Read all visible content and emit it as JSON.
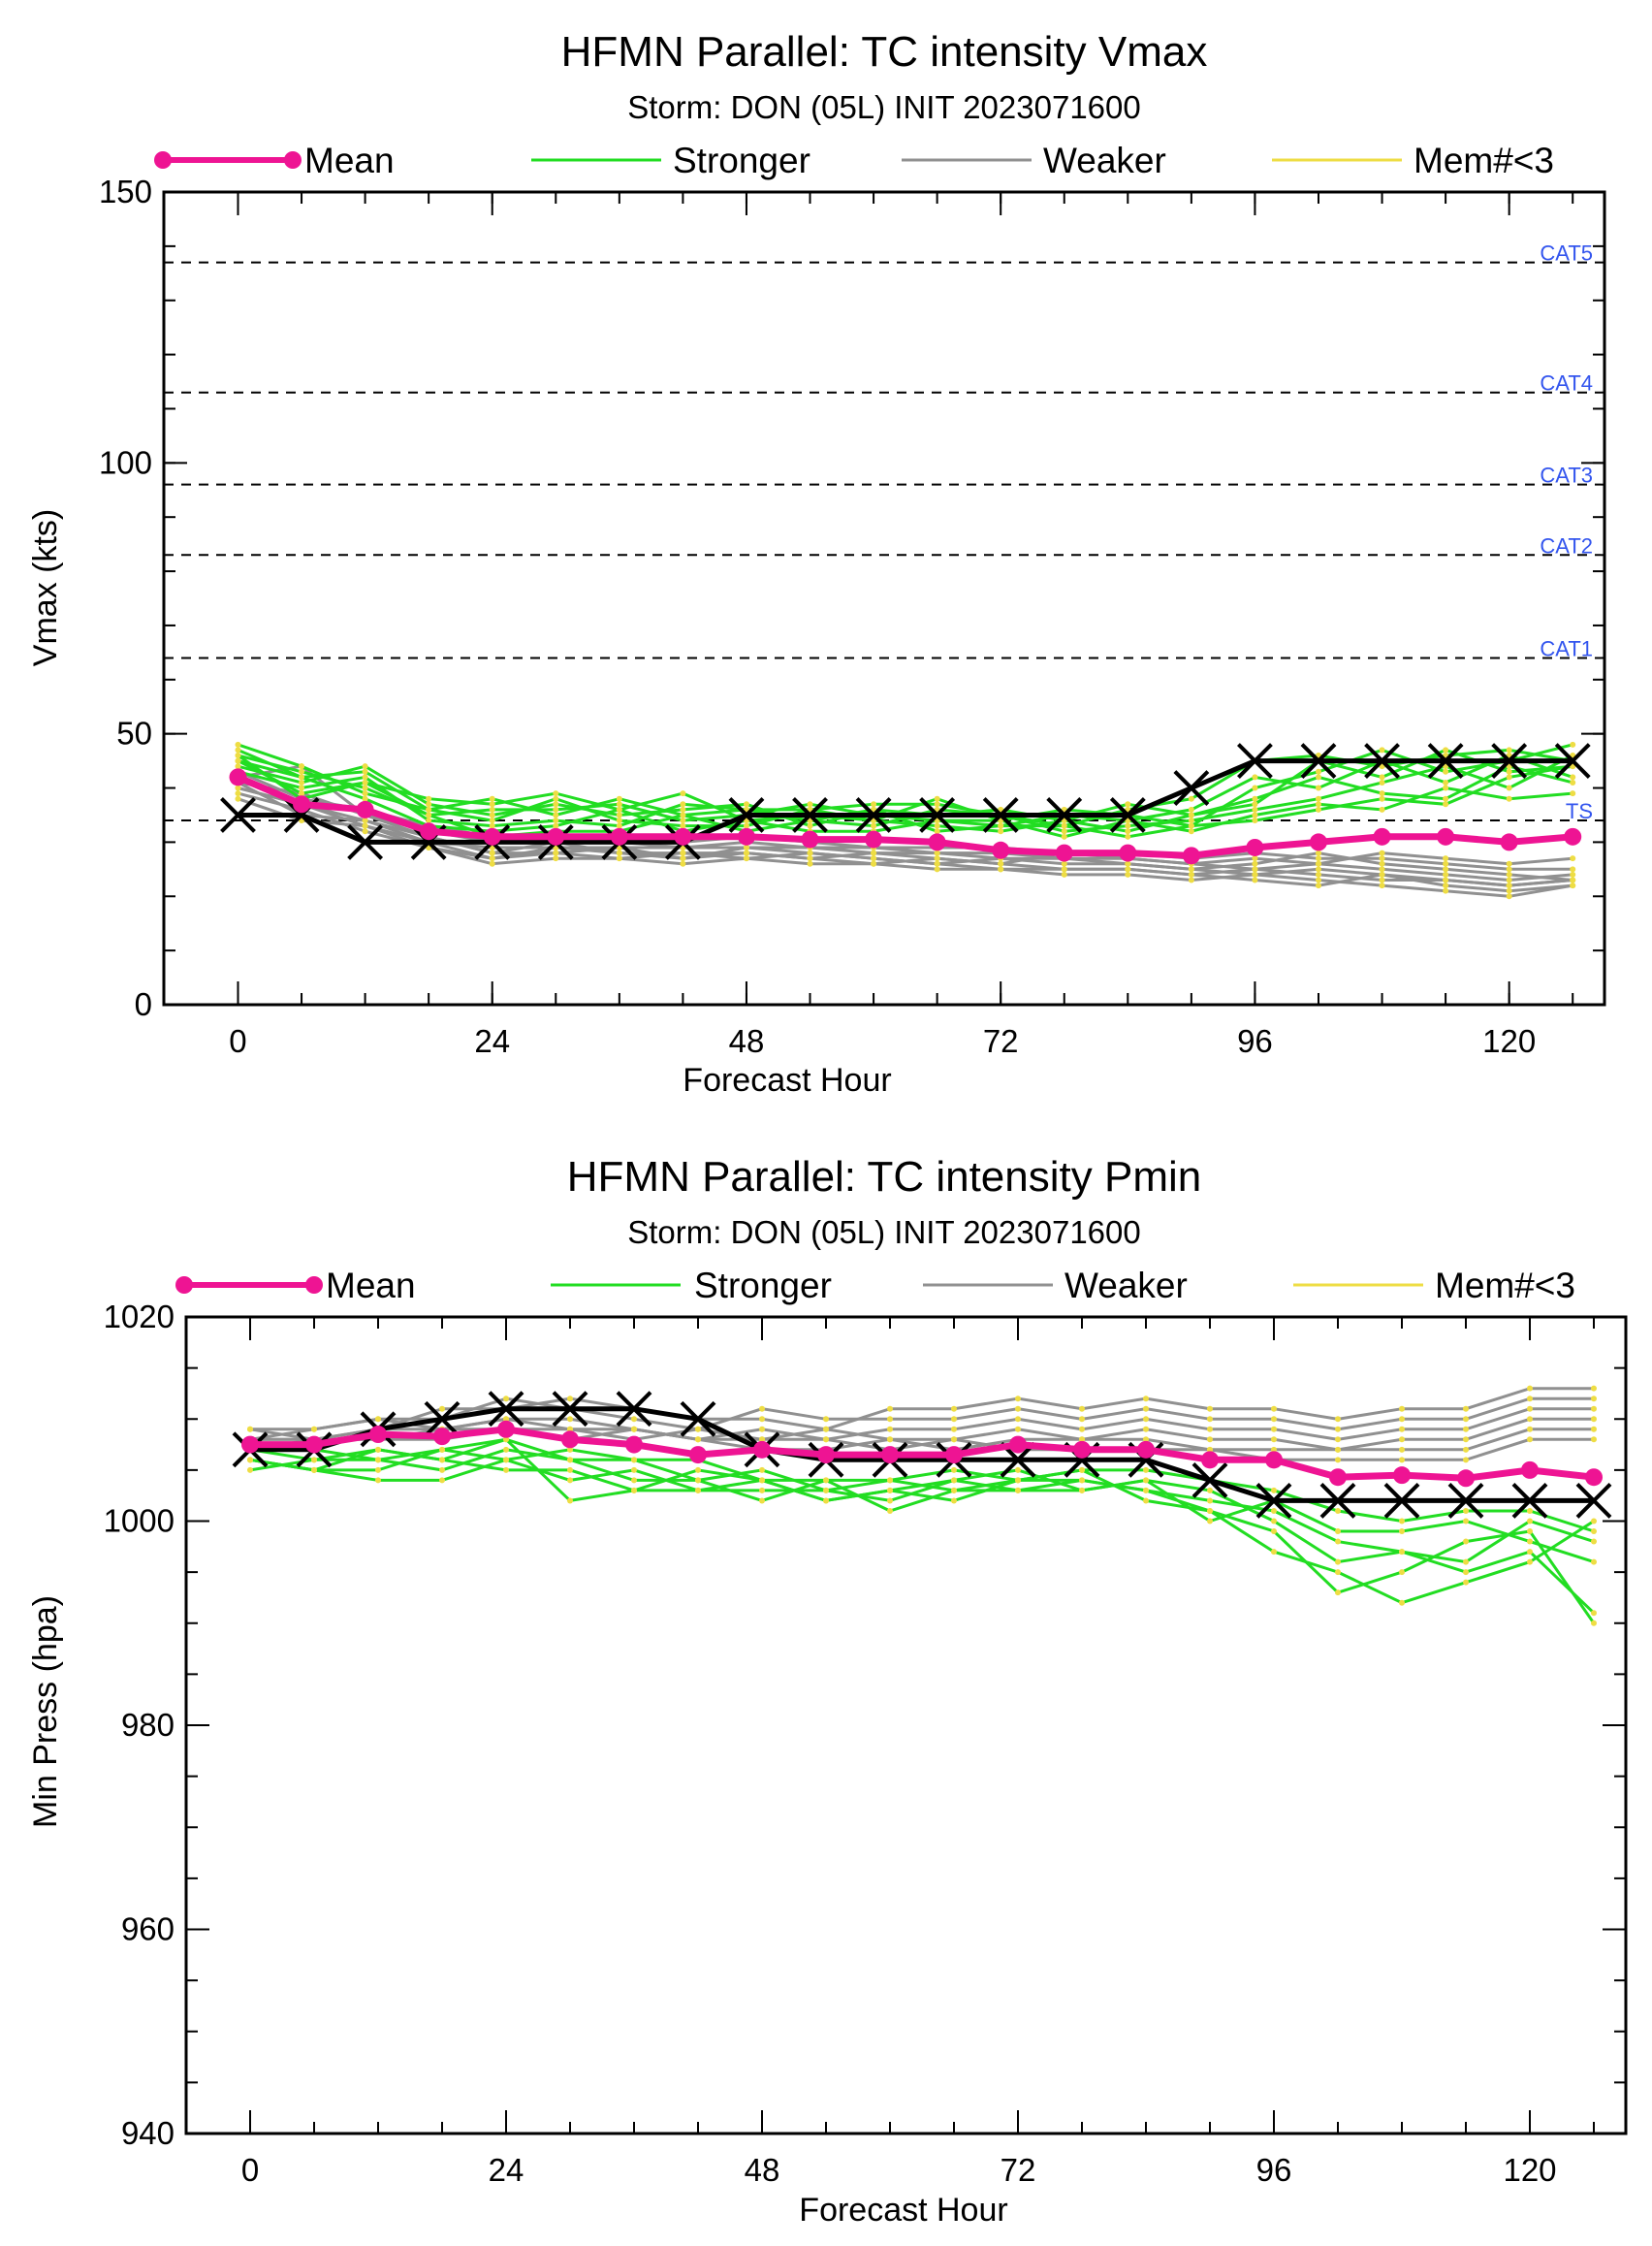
{
  "colors": {
    "mean": "#ee1493",
    "stronger": "#22dd22",
    "weaker": "#909090",
    "mem_lt3": "#eedd44",
    "observed": "#000000",
    "category_label": "#3355ee"
  },
  "chart_data": [
    {
      "type": "line",
      "title": "HFMN Parallel: TC intensity Vmax",
      "subtitle": "Storm: DON (05L) INIT 2023071600",
      "xlabel": "Forecast Hour",
      "ylabel": "Vmax (kts)",
      "xlim": [
        -7,
        129
      ],
      "ylim": [
        0,
        150
      ],
      "x_ticks": [
        0,
        24,
        48,
        72,
        96,
        120
      ],
      "y_ticks": [
        0,
        50,
        100,
        150
      ],
      "y_minor_step": 10,
      "x_minor_step": 6,
      "grid": false,
      "legend": {
        "position": "top",
        "entries": [
          "Mean",
          "Stronger",
          "Weaker",
          "Mem#<3"
        ]
      },
      "category_lines": [
        {
          "label": "CAT5",
          "value": 137
        },
        {
          "label": "CAT4",
          "value": 113
        },
        {
          "label": "CAT3",
          "value": 96
        },
        {
          "label": "CAT2",
          "value": 83
        },
        {
          "label": "CAT1",
          "value": 64
        },
        {
          "label": "TS",
          "value": 34
        }
      ],
      "x": [
        0,
        6,
        12,
        18,
        24,
        30,
        36,
        42,
        48,
        54,
        60,
        66,
        72,
        78,
        84,
        90,
        96,
        102,
        108,
        114,
        120,
        126
      ],
      "mean": [
        42,
        37,
        36,
        32,
        31,
        31,
        31,
        31,
        31,
        30.5,
        30.5,
        30,
        28.5,
        28,
        28,
        27.5,
        29,
        30,
        31,
        31,
        30,
        31
      ],
      "observed": [
        35,
        35,
        30,
        30,
        30,
        30,
        30,
        30,
        35,
        35,
        35,
        35,
        35,
        35,
        35,
        40,
        45,
        45,
        45,
        45,
        45,
        45
      ],
      "stronger_members": [
        [
          47,
          42,
          43,
          36,
          38,
          35,
          38,
          35,
          36,
          36,
          37,
          37,
          35,
          33,
          36,
          38,
          45,
          46,
          44,
          46,
          47,
          45
        ],
        [
          45,
          39,
          41,
          38,
          37,
          39,
          36,
          39,
          34,
          35,
          34,
          38,
          34,
          36,
          35,
          33,
          40,
          43,
          47,
          43,
          45,
          48
        ],
        [
          44,
          41,
          44,
          37,
          35,
          37,
          35,
          36,
          37,
          33,
          36,
          35,
          36,
          34,
          37,
          35,
          37,
          45,
          42,
          47,
          43,
          44
        ],
        [
          46,
          43,
          40,
          35,
          36,
          36,
          37,
          34,
          35,
          37,
          35,
          34,
          33,
          35,
          34,
          36,
          42,
          40,
          45,
          41,
          46,
          42
        ],
        [
          43,
          40,
          42,
          34,
          33,
          34,
          33,
          37,
          36,
          34,
          33,
          36,
          35,
          32,
          33,
          34,
          36,
          38,
          41,
          44,
          40,
          46
        ],
        [
          48,
          44,
          39,
          36,
          34,
          38,
          34,
          33,
          33,
          36,
          34,
          33,
          32,
          34,
          32,
          35,
          38,
          42,
          39,
          38,
          44,
          41
        ],
        [
          45,
          42,
          38,
          33,
          32,
          33,
          36,
          32,
          34,
          32,
          32,
          34,
          34,
          31,
          34,
          32,
          35,
          37,
          36,
          40,
          38,
          39
        ],
        [
          46,
          38,
          41,
          35,
          31,
          32,
          32,
          35,
          32,
          34,
          36,
          32,
          33,
          33,
          31,
          33,
          34,
          36,
          38,
          37,
          42,
          44
        ]
      ],
      "weaker_members": [
        [
          40,
          37,
          33,
          30,
          27,
          29,
          28,
          28,
          28,
          27,
          26,
          27,
          26,
          25,
          25,
          24,
          25,
          24,
          23,
          23,
          22,
          23
        ],
        [
          41,
          35,
          34,
          31,
          28,
          28,
          29,
          27,
          29,
          28,
          27,
          26,
          27,
          26,
          26,
          25,
          24,
          25,
          24,
          22,
          21,
          22
        ],
        [
          42,
          44,
          35,
          32,
          30,
          30,
          30,
          29,
          30,
          29,
          28,
          28,
          28,
          27,
          27,
          26,
          27,
          26,
          25,
          24,
          23,
          24
        ],
        [
          39,
          36,
          32,
          29,
          26,
          27,
          27,
          28,
          27,
          26,
          26,
          25,
          25,
          24,
          24,
          23,
          24,
          23,
          22,
          21,
          20,
          22
        ],
        [
          43,
          38,
          36,
          33,
          31,
          31,
          31,
          30,
          31,
          30,
          29,
          29,
          29,
          28,
          28,
          27,
          28,
          27,
          27,
          26,
          25,
          25
        ],
        [
          40,
          37,
          34,
          30,
          29,
          29,
          29,
          29,
          29,
          29,
          29,
          28,
          27,
          27,
          26,
          25,
          26,
          28,
          26,
          25,
          24,
          23
        ],
        [
          41,
          39,
          35,
          31,
          28,
          30,
          28,
          27,
          28,
          27,
          28,
          27,
          26,
          28,
          27,
          26,
          25,
          26,
          28,
          27,
          26,
          27
        ],
        [
          38,
          34,
          33,
          29,
          27,
          28,
          27,
          26,
          27,
          28,
          27,
          26,
          25,
          25,
          25,
          24,
          23,
          22,
          24,
          23,
          22,
          23
        ]
      ]
    },
    {
      "type": "line",
      "title": "HFMN Parallel: TC intensity Pmin",
      "subtitle": "Storm: DON (05L) INIT 2023071600",
      "xlabel": "Forecast Hour",
      "ylabel": "Min Press (hpa)",
      "xlim": [
        -6,
        129
      ],
      "ylim": [
        940,
        1020
      ],
      "x_ticks": [
        0,
        24,
        48,
        72,
        96,
        120
      ],
      "y_ticks": [
        940,
        960,
        980,
        1000,
        1020
      ],
      "y_minor_step": 5,
      "x_minor_step": 6,
      "grid": false,
      "legend": {
        "position": "top",
        "entries": [
          "Mean",
          "Stronger",
          "Weaker",
          "Mem#<3"
        ]
      },
      "x": [
        0,
        6,
        12,
        18,
        24,
        30,
        36,
        42,
        48,
        54,
        60,
        66,
        72,
        78,
        84,
        90,
        96,
        102,
        108,
        114,
        120,
        126
      ],
      "mean": [
        1007.5,
        1007.5,
        1008.5,
        1008.3,
        1009,
        1008,
        1007.5,
        1006.5,
        1007,
        1006.5,
        1006.5,
        1006.5,
        1007.5,
        1007,
        1007,
        1006,
        1006,
        1004.3,
        1004.5,
        1004.2,
        1005,
        1004.3
      ],
      "observed": [
        1007,
        1007,
        1009,
        1010,
        1011,
        1011,
        1011,
        1010,
        1007,
        1006,
        1006,
        1006,
        1006,
        1006,
        1006,
        1004,
        1002,
        1002,
        1002,
        1002,
        1002,
        1002
      ],
      "stronger_members": [
        [
          1006,
          1005,
          1007,
          1006,
          1008,
          1002,
          1003,
          1003,
          1004,
          1002,
          1003,
          1002,
          1004,
          1004,
          1003,
          1001,
          999,
          993,
          995,
          998,
          999,
          990
        ],
        [
          1007,
          1006,
          1006,
          1005,
          1007,
          1006,
          1004,
          1004,
          1002,
          1004,
          1001,
          1003,
          1003,
          1003,
          1004,
          1003,
          1000,
          996,
          997,
          995,
          997,
          991
        ],
        [
          1006,
          1005,
          1005,
          1007,
          1006,
          1004,
          1005,
          1003,
          1003,
          1003,
          1004,
          1003,
          1004,
          1005,
          1002,
          1001,
          997,
          995,
          992,
          994,
          996,
          1000
        ],
        [
          1005,
          1006,
          1007,
          1006,
          1005,
          1005,
          1003,
          1005,
          1004,
          1002,
          1003,
          1004,
          1003,
          1004,
          1003,
          1002,
          1001,
          998,
          997,
          996,
          1000,
          998
        ],
        [
          1006,
          1005,
          1004,
          1004,
          1006,
          1007,
          1006,
          1004,
          1005,
          1003,
          1002,
          1004,
          1005,
          1003,
          1004,
          1000,
          1002,
          999,
          999,
          1000,
          998,
          996
        ],
        [
          1007,
          1007,
          1006,
          1007,
          1008,
          1006,
          1006,
          1006,
          1004,
          1004,
          1004,
          1005,
          1004,
          1005,
          1005,
          1004,
          1003,
          1001,
          1000,
          1001,
          1001,
          999
        ]
      ],
      "weaker_members": [
        [
          1008,
          1008,
          1009,
          1011,
          1011,
          1012,
          1011,
          1010,
          1010,
          1009,
          1011,
          1011,
          1012,
          1011,
          1012,
          1011,
          1011,
          1010,
          1011,
          1011,
          1013,
          1013
        ],
        [
          1009,
          1009,
          1010,
          1010,
          1012,
          1011,
          1010,
          1009,
          1011,
          1010,
          1010,
          1010,
          1011,
          1010,
          1011,
          1010,
          1010,
          1009,
          1010,
          1010,
          1012,
          1012
        ],
        [
          1008,
          1008,
          1008,
          1009,
          1010,
          1010,
          1009,
          1008,
          1009,
          1008,
          1009,
          1009,
          1010,
          1009,
          1010,
          1009,
          1009,
          1008,
          1009,
          1009,
          1011,
          1011
        ],
        [
          1009,
          1008,
          1009,
          1009,
          1009,
          1009,
          1008,
          1009,
          1008,
          1009,
          1008,
          1008,
          1009,
          1008,
          1009,
          1008,
          1008,
          1007,
          1008,
          1008,
          1010,
          1010
        ],
        [
          1007,
          1008,
          1008,
          1008,
          1009,
          1008,
          1009,
          1008,
          1007,
          1007,
          1008,
          1007,
          1008,
          1008,
          1008,
          1007,
          1007,
          1007,
          1007,
          1007,
          1009,
          1009
        ],
        [
          1008,
          1009,
          1010,
          1009,
          1010,
          1009,
          1009,
          1008,
          1008,
          1008,
          1007,
          1008,
          1007,
          1007,
          1007,
          1007,
          1006,
          1006,
          1006,
          1006,
          1008,
          1008
        ]
      ]
    }
  ]
}
